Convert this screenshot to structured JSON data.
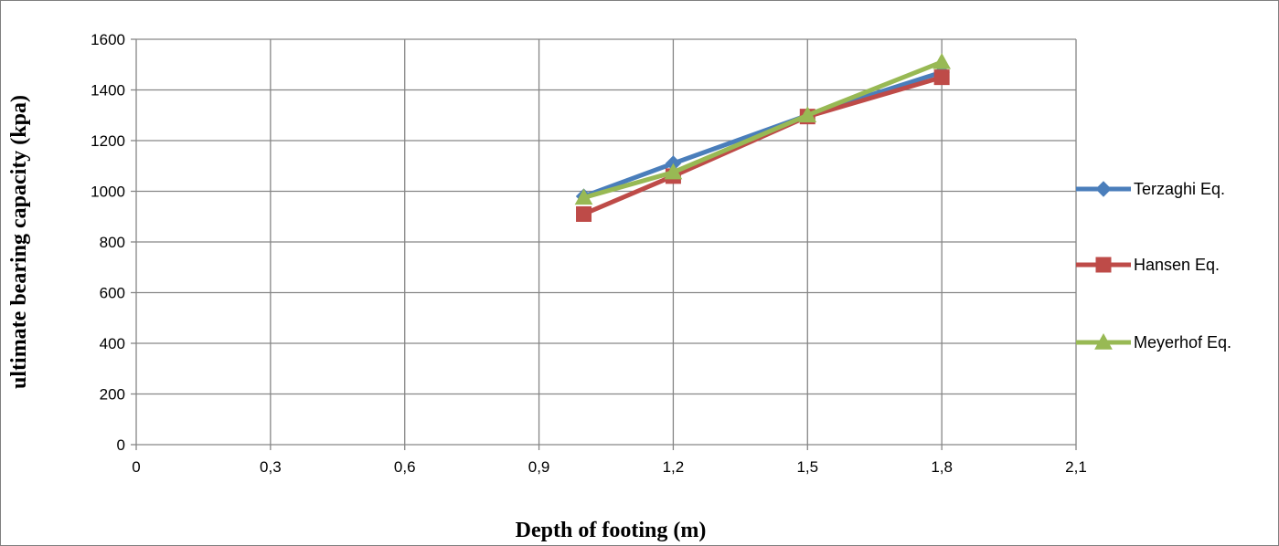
{
  "chart_data": {
    "type": "line",
    "title": "",
    "xlabel": "Depth of footing (m)",
    "ylabel": "ultimate bearing capacity (kpa)",
    "xlim": [
      0,
      2.1
    ],
    "ylim": [
      0,
      1600
    ],
    "x_ticks": [
      "0",
      "0,3",
      "0,6",
      "0,9",
      "1,2",
      "1,5",
      "1,8",
      "2,1"
    ],
    "y_ticks": [
      "0",
      "200",
      "400",
      "600",
      "800",
      "1000",
      "1200",
      "1400",
      "1600"
    ],
    "grid": true,
    "legend_position": "right",
    "x": [
      1.0,
      1.2,
      1.5,
      1.8
    ],
    "series": [
      {
        "name": "Terzaghi Eq.",
        "values": [
          980,
          1110,
          1300,
          1470
        ],
        "color": "#4a7ebb",
        "marker": "diamond"
      },
      {
        "name": "Hansen Eq.",
        "values": [
          910,
          1060,
          1295,
          1450
        ],
        "color": "#be4b48",
        "marker": "square"
      },
      {
        "name": "Meyerhof Eq.",
        "values": [
          975,
          1075,
          1300,
          1510
        ],
        "color": "#98b954",
        "marker": "triangle"
      }
    ]
  }
}
